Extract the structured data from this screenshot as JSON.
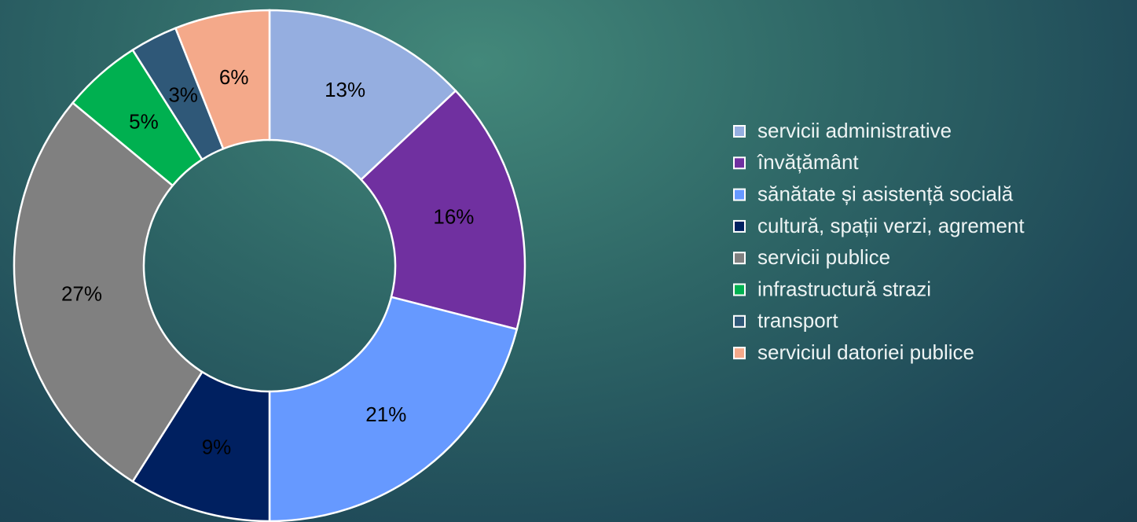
{
  "chart_data": {
    "type": "donut",
    "categories": [
      "servicii administrative",
      "învățământ",
      "sănătate și asistență socială",
      "cultură, spații verzi, agrement",
      "servicii publice",
      "infrastructură strazi",
      "transport",
      "serviciul datoriei publice"
    ],
    "values": [
      13,
      16,
      21,
      9,
      27,
      5,
      3,
      6
    ],
    "value_labels": [
      "13%",
      "16%",
      "21%",
      "9%",
      "27%",
      "5%",
      "3%",
      "6%"
    ],
    "colors": [
      "#95aee0",
      "#7030a0",
      "#6699ff",
      "#002060",
      "#808080",
      "#00b050",
      "#2f5878",
      "#f4a98a"
    ],
    "legend": "right"
  }
}
